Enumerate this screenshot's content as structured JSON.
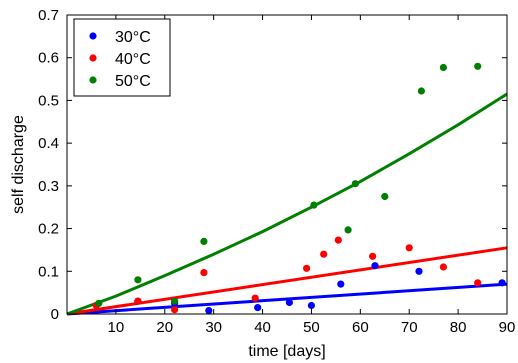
{
  "chart_data": {
    "type": "scatter",
    "xlabel": "time [days]",
    "ylabel": "self discharge",
    "xlim": [
      0,
      90
    ],
    "ylim": [
      0,
      0.7
    ],
    "xticks": [
      10,
      20,
      30,
      40,
      50,
      60,
      70,
      80,
      90
    ],
    "yticks": [
      0,
      0.1,
      0.2,
      0.3,
      0.4,
      0.5,
      0.6,
      0.7
    ],
    "ytick_labels": [
      "0",
      "0.1",
      "0.2",
      "0.3",
      "0.4",
      "0.5",
      "0.6",
      "0.7"
    ],
    "grid": false,
    "legend_position": "top-left",
    "series": [
      {
        "name": "30°C",
        "color": "#0000ff",
        "points": [
          [
            14.5,
            0.03
          ],
          [
            22,
            0.025
          ],
          [
            29,
            0.008
          ],
          [
            39,
            0.015
          ],
          [
            45.5,
            0.027
          ],
          [
            50,
            0.02
          ],
          [
            56,
            0.07
          ],
          [
            63,
            0.113
          ],
          [
            72,
            0.1
          ],
          [
            89,
            0.073
          ]
        ],
        "fit": [
          [
            0,
            0
          ],
          [
            90,
            0.07
          ]
        ]
      },
      {
        "name": "40°C",
        "color": "#ff0000",
        "points": [
          [
            6,
            0.02
          ],
          [
            14.5,
            0.03
          ],
          [
            22,
            0.01
          ],
          [
            28,
            0.097
          ],
          [
            38.5,
            0.037
          ],
          [
            49,
            0.107
          ],
          [
            52.5,
            0.14
          ],
          [
            55.5,
            0.173
          ],
          [
            62.5,
            0.135
          ],
          [
            70,
            0.155
          ],
          [
            77,
            0.11
          ],
          [
            84,
            0.073
          ]
        ],
        "fit": [
          [
            0,
            0
          ],
          [
            90,
            0.155
          ]
        ]
      },
      {
        "name": "50°C",
        "color": "#008000",
        "points": [
          [
            6.5,
            0.025
          ],
          [
            14.5,
            0.08
          ],
          [
            22,
            0.03
          ],
          [
            28,
            0.17
          ],
          [
            50.5,
            0.255
          ],
          [
            57.5,
            0.197
          ],
          [
            59,
            0.305
          ],
          [
            65,
            0.275
          ],
          [
            72.5,
            0.522
          ],
          [
            77,
            0.577
          ],
          [
            84,
            0.58
          ]
        ],
        "fit": [
          [
            0,
            0
          ],
          [
            10,
            0.042
          ],
          [
            20,
            0.09
          ],
          [
            30,
            0.14
          ],
          [
            40,
            0.193
          ],
          [
            50,
            0.25
          ],
          [
            60,
            0.31
          ],
          [
            70,
            0.375
          ],
          [
            80,
            0.443
          ],
          [
            90,
            0.515
          ]
        ]
      }
    ]
  }
}
